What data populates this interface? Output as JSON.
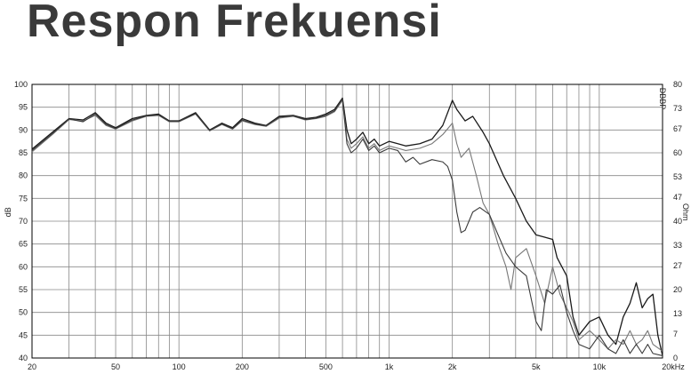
{
  "title": "Respon Frekuensi",
  "chart_data": {
    "type": "line",
    "x_scale": "log",
    "xlim": [
      20,
      20000
    ],
    "ylim": [
      40,
      100
    ],
    "y2lim": [
      0,
      80
    ],
    "grid": true,
    "xlabel": "",
    "ylabel": "dB",
    "y2label": "Ohm",
    "watermark": "DBBP",
    "x_tick_labels": [
      {
        "v": 20,
        "t": "20"
      },
      {
        "v": 50,
        "t": "50"
      },
      {
        "v": 100,
        "t": "100"
      },
      {
        "v": 200,
        "t": "200"
      },
      {
        "v": 500,
        "t": "500"
      },
      {
        "v": 1000,
        "t": "1k"
      },
      {
        "v": 2000,
        "t": "2k"
      },
      {
        "v": 5000,
        "t": "5k"
      },
      {
        "v": 10000,
        "t": "10k"
      },
      {
        "v": 20000,
        "t": "20kHz"
      }
    ],
    "y_tick_labels": [
      "40",
      "45",
      "50",
      "55",
      "60",
      "65",
      "70",
      "75",
      "80",
      "85",
      "90",
      "95",
      "100"
    ],
    "y2_tick_labels": [
      {
        "v": 0,
        "t": "0"
      },
      {
        "v": 7,
        "t": "7"
      },
      {
        "v": 13,
        "t": "13"
      },
      {
        "v": 20,
        "t": "20"
      },
      {
        "v": 27,
        "t": "27"
      },
      {
        "v": 33,
        "t": "33"
      },
      {
        "v": 40,
        "t": "40"
      },
      {
        "v": 47,
        "t": "47"
      },
      {
        "v": 53,
        "t": "53"
      },
      {
        "v": 60,
        "t": "60"
      },
      {
        "v": 67,
        "t": "67"
      },
      {
        "v": 73,
        "t": "73"
      },
      {
        "v": 80,
        "t": "80"
      }
    ],
    "series": [
      {
        "color": "#1a1a1a",
        "width": 1.3,
        "points": [
          [
            20,
            85.8
          ],
          [
            25,
            89.5
          ],
          [
            30,
            92.5
          ],
          [
            35,
            92.2
          ],
          [
            40,
            93.8
          ],
          [
            45,
            91.5
          ],
          [
            50,
            90.5
          ],
          [
            60,
            92.5
          ],
          [
            70,
            93.2
          ],
          [
            80,
            93.5
          ],
          [
            90,
            92
          ],
          [
            100,
            92
          ],
          [
            120,
            93.8
          ],
          [
            140,
            90
          ],
          [
            160,
            91.5
          ],
          [
            180,
            90.5
          ],
          [
            200,
            92.5
          ],
          [
            230,
            91.5
          ],
          [
            260,
            91
          ],
          [
            300,
            93
          ],
          [
            350,
            93.2
          ],
          [
            400,
            92.5
          ],
          [
            450,
            92.8
          ],
          [
            500,
            93.5
          ],
          [
            550,
            94.5
          ],
          [
            600,
            97
          ],
          [
            630,
            90
          ],
          [
            660,
            87
          ],
          [
            700,
            88
          ],
          [
            750,
            89.5
          ],
          [
            800,
            87
          ],
          [
            850,
            88
          ],
          [
            900,
            86.5
          ],
          [
            1000,
            87.5
          ],
          [
            1100,
            87
          ],
          [
            1200,
            86.5
          ],
          [
            1400,
            87
          ],
          [
            1600,
            88
          ],
          [
            1800,
            91
          ],
          [
            2000,
            96.5
          ],
          [
            2100,
            94.5
          ],
          [
            2300,
            92
          ],
          [
            2500,
            93
          ],
          [
            2800,
            89.5
          ],
          [
            3000,
            87
          ],
          [
            3500,
            80
          ],
          [
            4000,
            75
          ],
          [
            4500,
            70
          ],
          [
            5000,
            67
          ],
          [
            5500,
            66.5
          ],
          [
            6000,
            66
          ],
          [
            6300,
            62
          ],
          [
            7000,
            58
          ],
          [
            7500,
            49
          ],
          [
            8000,
            45
          ],
          [
            9000,
            48
          ],
          [
            10000,
            49
          ],
          [
            11000,
            45
          ],
          [
            12000,
            43
          ],
          [
            13000,
            49
          ],
          [
            14000,
            52
          ],
          [
            15000,
            56.5
          ],
          [
            16000,
            51
          ],
          [
            17000,
            53
          ],
          [
            18000,
            54
          ],
          [
            19000,
            45
          ],
          [
            20000,
            40.5
          ]
        ]
      },
      {
        "color": "#777777",
        "width": 1.1,
        "points": [
          [
            20,
            85.2
          ],
          [
            25,
            89
          ],
          [
            30,
            92.3
          ],
          [
            35,
            92
          ],
          [
            40,
            93.2
          ],
          [
            45,
            91
          ],
          [
            50,
            90.2
          ],
          [
            60,
            92
          ],
          [
            70,
            93
          ],
          [
            80,
            93.2
          ],
          [
            90,
            91.8
          ],
          [
            100,
            91.8
          ],
          [
            120,
            93.5
          ],
          [
            140,
            89.8
          ],
          [
            160,
            91.2
          ],
          [
            180,
            90.2
          ],
          [
            200,
            92
          ],
          [
            230,
            91.2
          ],
          [
            260,
            90.8
          ],
          [
            300,
            92.6
          ],
          [
            350,
            93
          ],
          [
            400,
            92.2
          ],
          [
            450,
            92.5
          ],
          [
            500,
            93
          ],
          [
            550,
            94
          ],
          [
            600,
            96.5
          ],
          [
            630,
            88
          ],
          [
            660,
            86
          ],
          [
            700,
            87
          ],
          [
            750,
            88.5
          ],
          [
            800,
            86
          ],
          [
            850,
            87
          ],
          [
            900,
            85.5
          ],
          [
            1000,
            86.5
          ],
          [
            1100,
            86
          ],
          [
            1200,
            85.5
          ],
          [
            1400,
            86
          ],
          [
            1600,
            87
          ],
          [
            1800,
            89
          ],
          [
            2000,
            91.5
          ],
          [
            2100,
            87
          ],
          [
            2200,
            84
          ],
          [
            2400,
            86
          ],
          [
            2600,
            80
          ],
          [
            2800,
            74
          ],
          [
            3000,
            71.5
          ],
          [
            3300,
            65
          ],
          [
            3600,
            60
          ],
          [
            3800,
            55
          ],
          [
            4000,
            62
          ],
          [
            4500,
            64
          ],
          [
            5000,
            58
          ],
          [
            5500,
            52
          ],
          [
            6000,
            60
          ],
          [
            6500,
            54
          ],
          [
            7000,
            51
          ],
          [
            7500,
            48
          ],
          [
            8000,
            44
          ],
          [
            9000,
            46
          ],
          [
            10000,
            44
          ],
          [
            11000,
            42
          ],
          [
            12000,
            44
          ],
          [
            13000,
            43
          ],
          [
            14000,
            46
          ],
          [
            15000,
            43
          ],
          [
            16000,
            44
          ],
          [
            17000,
            46
          ],
          [
            18000,
            43
          ],
          [
            20000,
            41.5
          ]
        ]
      },
      {
        "color": "#3a3a3a",
        "width": 1.1,
        "points": [
          [
            20,
            85.5
          ],
          [
            25,
            89.2
          ],
          [
            30,
            92.4
          ],
          [
            35,
            91.8
          ],
          [
            40,
            93.5
          ],
          [
            45,
            91.2
          ],
          [
            50,
            90.3
          ],
          [
            60,
            92.2
          ],
          [
            70,
            93.1
          ],
          [
            80,
            93.3
          ],
          [
            90,
            91.9
          ],
          [
            100,
            91.9
          ],
          [
            120,
            93.6
          ],
          [
            140,
            89.9
          ],
          [
            160,
            91.3
          ],
          [
            180,
            90.3
          ],
          [
            200,
            92.2
          ],
          [
            230,
            91.3
          ],
          [
            260,
            90.9
          ],
          [
            300,
            92.8
          ],
          [
            350,
            93.1
          ],
          [
            400,
            92.3
          ],
          [
            450,
            92.6
          ],
          [
            500,
            93.2
          ],
          [
            550,
            94.2
          ],
          [
            600,
            96.8
          ],
          [
            630,
            87
          ],
          [
            660,
            85
          ],
          [
            700,
            86
          ],
          [
            750,
            88
          ],
          [
            800,
            85.5
          ],
          [
            850,
            86.5
          ],
          [
            900,
            85
          ],
          [
            1000,
            86
          ],
          [
            1100,
            85.5
          ],
          [
            1200,
            83
          ],
          [
            1300,
            84
          ],
          [
            1400,
            82.5
          ],
          [
            1600,
            83.5
          ],
          [
            1800,
            83
          ],
          [
            1900,
            82
          ],
          [
            2000,
            79
          ],
          [
            2100,
            72
          ],
          [
            2200,
            67.5
          ],
          [
            2300,
            68
          ],
          [
            2500,
            72
          ],
          [
            2700,
            73
          ],
          [
            3000,
            71.5
          ],
          [
            3300,
            67
          ],
          [
            3600,
            63
          ],
          [
            4000,
            60
          ],
          [
            4500,
            58
          ],
          [
            5000,
            48
          ],
          [
            5300,
            46
          ],
          [
            5600,
            55
          ],
          [
            6000,
            54
          ],
          [
            6500,
            56
          ],
          [
            7000,
            50
          ],
          [
            7500,
            46
          ],
          [
            8000,
            43
          ],
          [
            9000,
            42
          ],
          [
            10000,
            45
          ],
          [
            11000,
            42
          ],
          [
            12000,
            41
          ],
          [
            13000,
            44
          ],
          [
            14000,
            41
          ],
          [
            15000,
            43
          ],
          [
            16000,
            41
          ],
          [
            17000,
            43
          ],
          [
            18000,
            41
          ],
          [
            20000,
            40.5
          ]
        ]
      }
    ]
  }
}
